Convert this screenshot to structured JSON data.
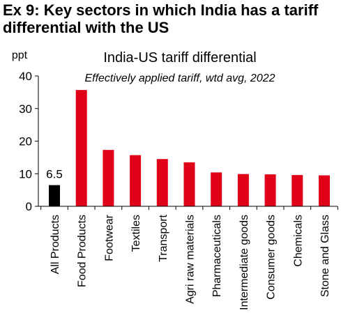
{
  "exhibit_title": "Ex 9: Key sectors in which India has a tariff differential with the US",
  "colors": {
    "highlight": "#000000",
    "bars": "#e00018",
    "axis": "#000000"
  },
  "chart_data": {
    "type": "bar",
    "title": "India-US tariff differential",
    "subtitle": "Effectively applied tariff, wtd avg, 2022",
    "ylabel": "ppt",
    "xlabel": "",
    "ylim": [
      0,
      40
    ],
    "yticks": [
      0,
      10,
      20,
      30,
      40
    ],
    "grid": false,
    "categories": [
      "All Products",
      "Food Products",
      "Footwear",
      "Textiles",
      "Transport",
      "Agri raw materials",
      "Pharmaceuticals",
      "Intermediate goods",
      "Consumer goods",
      "Chemicals",
      "Stone and Glass"
    ],
    "values": [
      6.5,
      35.7,
      17.3,
      15.7,
      14.5,
      13.5,
      10.4,
      9.9,
      9.8,
      9.6,
      9.5
    ],
    "data_labels": [
      {
        "category": "All Products",
        "text": "6.5"
      }
    ],
    "highlight_category": "All Products"
  }
}
